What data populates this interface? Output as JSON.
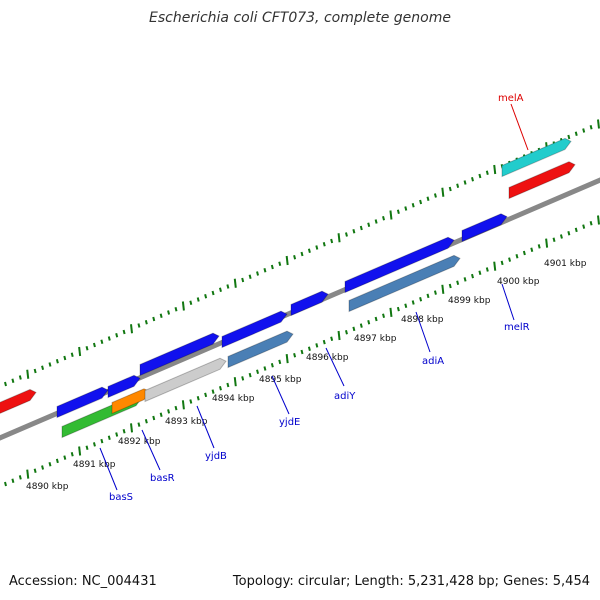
{
  "title": "Escherichia coli CFT073, complete genome",
  "footer": {
    "accession": "Accession: NC_004431",
    "info": "Topology: circular; Length: 5,231,428 bp; Genes: 5,454"
  },
  "kbp_labels": [
    "4890 kbp",
    "4891 kbp",
    "4892 kbp",
    "4893 kbp",
    "4894 kbp",
    "4895 kbp",
    "4896 kbp",
    "4897 kbp",
    "4898 kbp",
    "4899 kbp",
    "4900 kbp",
    "4901 kbp"
  ],
  "gene_labels": [
    {
      "name": "melA",
      "color": "#dd0000"
    },
    {
      "name": "melR",
      "color": "#0000cc"
    },
    {
      "name": "adiA",
      "color": "#0000cc"
    },
    {
      "name": "adiY",
      "color": "#0000cc"
    },
    {
      "name": "yjdE",
      "color": "#0000cc"
    },
    {
      "name": "yjdB",
      "color": "#0000cc"
    },
    {
      "name": "basR",
      "color": "#0000cc"
    },
    {
      "name": "basS",
      "color": "#0000cc"
    }
  ],
  "colors": {
    "backbone": "#888888",
    "tick": "#117711",
    "cds": "#1111ee",
    "steelblue": "#4a7fb5",
    "red": "#ee1111",
    "cyan": "#22cccc",
    "green": "#33bb33",
    "orange": "#ff8800",
    "gray": "#cccccc"
  }
}
